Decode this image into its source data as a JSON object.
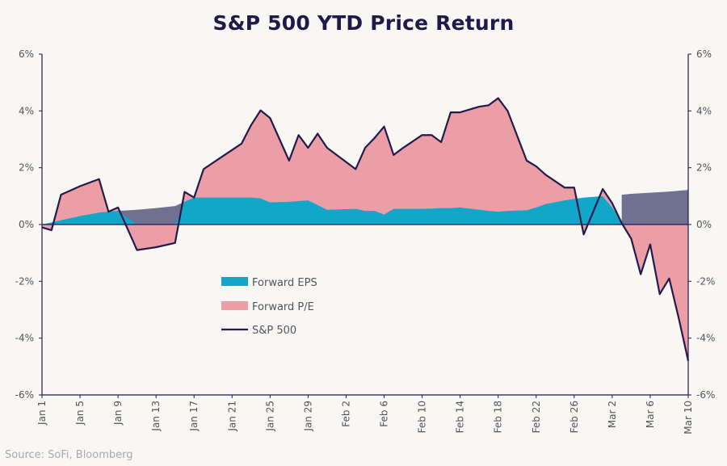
{
  "title": "S&P 500 YTD Price Return",
  "source": "Source: SoFi, Bloomberg",
  "colors": {
    "eps": "#12a6c9",
    "pe": "#eb9ea5",
    "pe_neg_extension": "#707090",
    "sp500": "#231a4e",
    "axis": "#231a4e",
    "text": "#55535e"
  },
  "chart_data": {
    "type": "area",
    "ylim": [
      -6,
      6
    ],
    "y_ticks": [
      "6%",
      "4%",
      "2%",
      "0%",
      "-2%",
      "-4%",
      "-6%"
    ],
    "x_tick_labels": [
      "Jan 1",
      "Jan 5",
      "Jan 9",
      "Jan 13",
      "Jan 17",
      "Jan 21",
      "Jan 25",
      "Jan 29",
      "Feb 2",
      "Feb 6",
      "Feb 10",
      "Feb 14",
      "Feb 18",
      "Feb 22",
      "Feb 26",
      "Mar 2",
      "Mar 6",
      "Mar 10"
    ],
    "x_range": [
      0,
      68
    ],
    "legend": [
      "Forward EPS",
      "Forward P/E",
      "S&P 500"
    ],
    "series": [
      {
        "name": "S&P 500",
        "x": [
          0,
          1,
          2,
          4,
          6,
          7,
          8,
          10,
          12,
          14,
          15,
          16,
          17,
          19,
          21,
          22,
          23,
          24,
          26,
          27,
          28,
          29,
          30,
          33,
          34,
          35,
          36,
          37,
          38,
          40,
          41,
          42,
          43,
          44,
          46,
          47,
          48,
          49,
          51,
          52,
          53,
          55,
          56,
          57,
          59,
          60,
          61,
          62,
          63,
          64,
          65,
          66,
          67,
          68
        ],
        "values": [
          -0.1,
          -0.2,
          1.05,
          1.35,
          1.6,
          0.45,
          0.6,
          -0.9,
          -0.8,
          -0.65,
          1.15,
          0.95,
          1.95,
          2.4,
          2.85,
          3.5,
          4.02,
          3.75,
          2.25,
          3.15,
          2.7,
          3.2,
          2.7,
          1.95,
          2.7,
          3.05,
          3.45,
          2.45,
          2.7,
          3.15,
          3.15,
          2.9,
          3.95,
          3.95,
          4.15,
          4.2,
          4.45,
          4.0,
          2.25,
          2.05,
          1.75,
          1.3,
          1.3,
          -0.35,
          1.25,
          0.75,
          0.05,
          -0.5,
          -1.75,
          -0.7,
          -2.45,
          -1.9,
          -3.3,
          -4.8
        ]
      },
      {
        "name": "Forward EPS",
        "x": [
          0,
          2,
          4,
          6,
          8,
          10,
          12,
          14,
          15,
          16,
          17,
          19,
          21,
          22,
          23,
          24,
          26,
          28,
          30,
          33,
          34,
          35,
          36,
          37,
          38,
          40,
          41,
          42,
          43,
          44,
          46,
          47,
          48,
          49,
          51,
          52,
          53,
          55,
          56,
          57,
          59,
          60,
          61
        ],
        "values": [
          0,
          0.15,
          0.3,
          0.42,
          0.48,
          0.52,
          0.58,
          0.65,
          0.8,
          0.95,
          0.95,
          0.95,
          0.95,
          0.95,
          0.92,
          0.78,
          0.8,
          0.85,
          0.52,
          0.55,
          0.48,
          0.48,
          0.35,
          0.55,
          0.55,
          0.55,
          0.56,
          0.58,
          0.58,
          0.6,
          0.52,
          0.48,
          0.45,
          0.48,
          0.5,
          0.6,
          0.72,
          0.85,
          0.9,
          0.95,
          1.0,
          0.6,
          0.1
        ]
      }
    ],
    "forward_pe_note": "Forward P/E shown as the gap between the S&P 500 line and Forward EPS area"
  }
}
